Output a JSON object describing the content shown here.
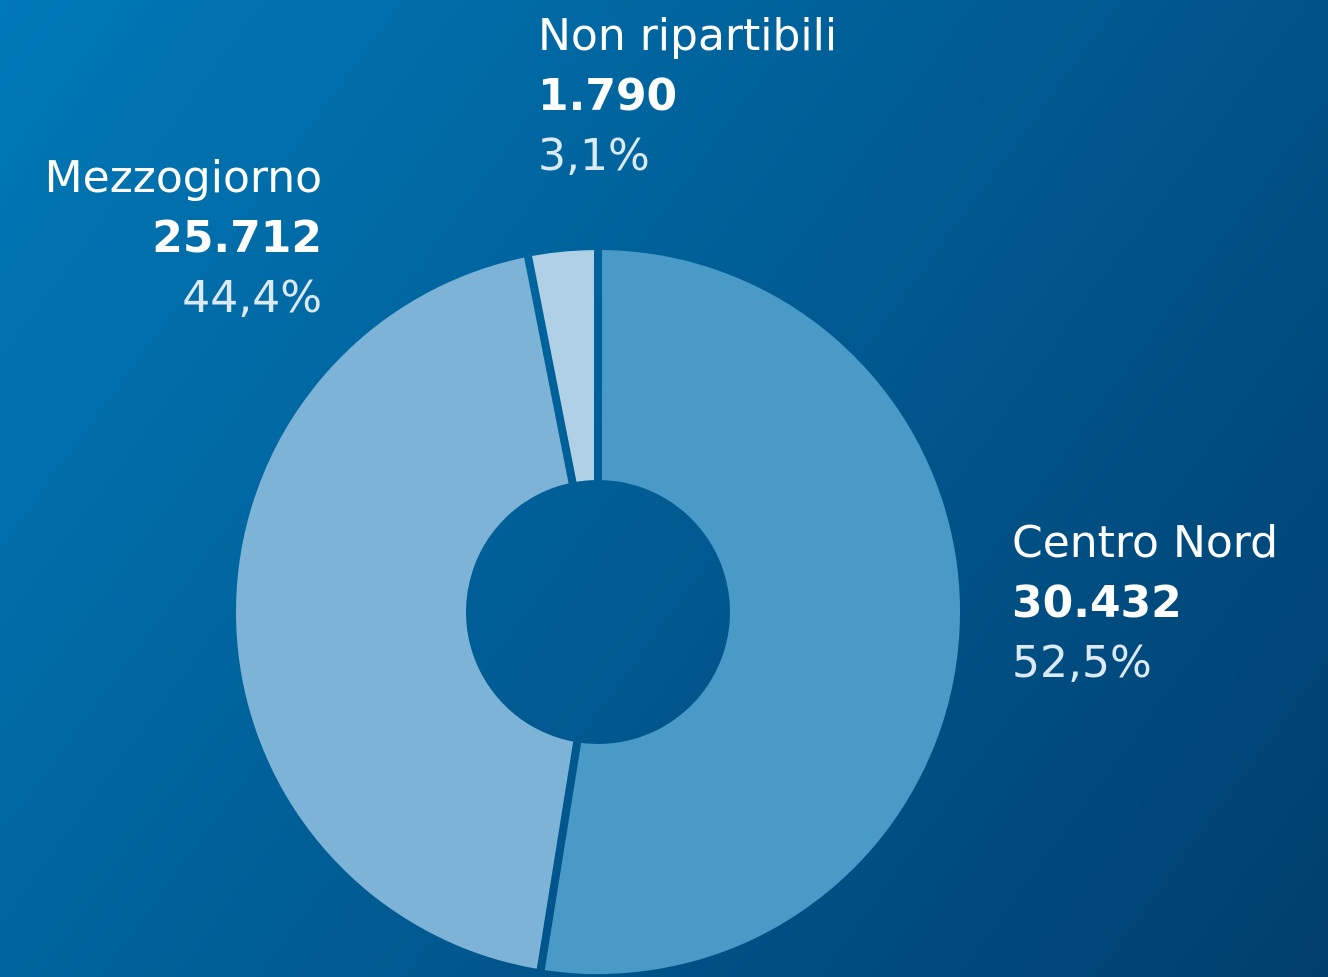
{
  "chart_data": {
    "type": "donut",
    "categories": [
      "Centro Nord",
      "Mezzogiorno",
      "Non ripartibili"
    ],
    "values": [
      30432,
      25712,
      1790
    ],
    "value_labels": [
      "30.432",
      "25.712",
      "1.790"
    ],
    "shares": [
      52.5,
      44.4,
      3.1
    ],
    "share_labels": [
      "52,5%",
      "44,4%",
      "3,1%"
    ],
    "colors": [
      "#4a9ac8",
      "#7db3d6",
      "#b0d0e6"
    ]
  }
}
